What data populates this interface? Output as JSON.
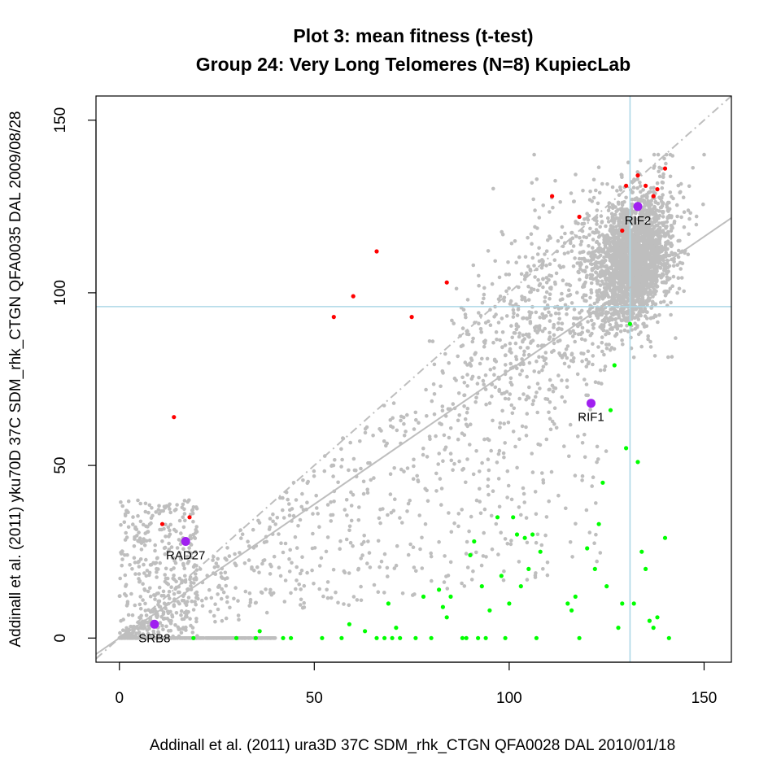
{
  "chart_data": {
    "type": "scatter",
    "title": "Plot 3: mean fitness (t-test)",
    "subtitle": "Group 24: Very Long Telomeres (N=8) KupiecLab",
    "xlabel": "Addinall et al. (2011) ura3D 37C SDM_rhk_CTGN    QFA0028 DAL 2010/01/18",
    "ylabel": "Addinall et al. (2011) yku70D 37C SDM_rhk_CTGN    QFA0035 DAL 2009/08/28",
    "xlim": [
      -6,
      157
    ],
    "ylim": [
      -7,
      157
    ],
    "x_ticks": [
      0,
      50,
      100,
      150
    ],
    "y_ticks": [
      0,
      50,
      100,
      150
    ],
    "reference_lines": {
      "vertical_x": 131,
      "horizontal_y": 96,
      "dashed_identity": {
        "intercept": 0,
        "slope": 1
      },
      "solid_fit": {
        "intercept": 0,
        "slope": 0.775
      }
    },
    "colors": {
      "background_points": "#bebebe",
      "enhancer": "#ff0000",
      "suppressor": "#00ff00",
      "highlight": "#a020f0",
      "reference_line": "#add8e6",
      "fit_line": "#bebebe"
    },
    "series": [
      {
        "name": "",
        "color": "#ff0000",
        "x": [
          14,
          11,
          18,
          55,
          60,
          66,
          75,
          84,
          111,
          118,
          129,
          130,
          133,
          135,
          137,
          138,
          140
        ],
        "y": [
          64,
          33,
          35,
          93,
          99,
          112,
          93,
          103,
          128,
          122,
          118,
          131,
          134,
          131,
          128,
          130,
          136
        ]
      },
      {
        "name": "",
        "color": "#00ff00",
        "x": [
          19,
          30,
          35,
          36,
          42,
          44,
          52,
          57,
          59,
          63,
          66,
          68,
          69,
          70,
          71,
          72,
          76,
          78,
          80,
          82,
          83,
          84,
          85,
          88,
          89,
          90,
          91,
          92,
          93,
          94,
          95,
          97,
          98,
          99,
          100,
          101,
          102,
          103,
          104,
          105,
          106,
          107,
          108,
          115,
          116,
          117,
          118,
          120,
          122,
          123,
          124,
          125,
          126,
          127,
          128,
          129,
          130,
          131,
          132,
          133,
          134,
          135,
          136,
          137,
          138,
          140,
          141
        ],
        "y": [
          0,
          0,
          0,
          2,
          0,
          0,
          0,
          0,
          4,
          2,
          0,
          0,
          10,
          0,
          3,
          0,
          0,
          12,
          0,
          14,
          9,
          6,
          12,
          0,
          0,
          24,
          28,
          0,
          15,
          0,
          8,
          35,
          18,
          0,
          10,
          35,
          30,
          15,
          29,
          20,
          30,
          0,
          25,
          10,
          8,
          12,
          0,
          26,
          20,
          33,
          45,
          15,
          66,
          79,
          3,
          10,
          55,
          91,
          10,
          51,
          25,
          20,
          5,
          3,
          6,
          29,
          0
        ]
      },
      {
        "name": "",
        "color": "#a020f0",
        "x": [
          9,
          17,
          121,
          133
        ],
        "y": [
          4,
          28,
          68,
          125
        ],
        "labels": [
          "SRB8",
          "RAD27",
          "RIF1",
          "RIF2"
        ]
      }
    ],
    "background_point_count": 4300
  }
}
